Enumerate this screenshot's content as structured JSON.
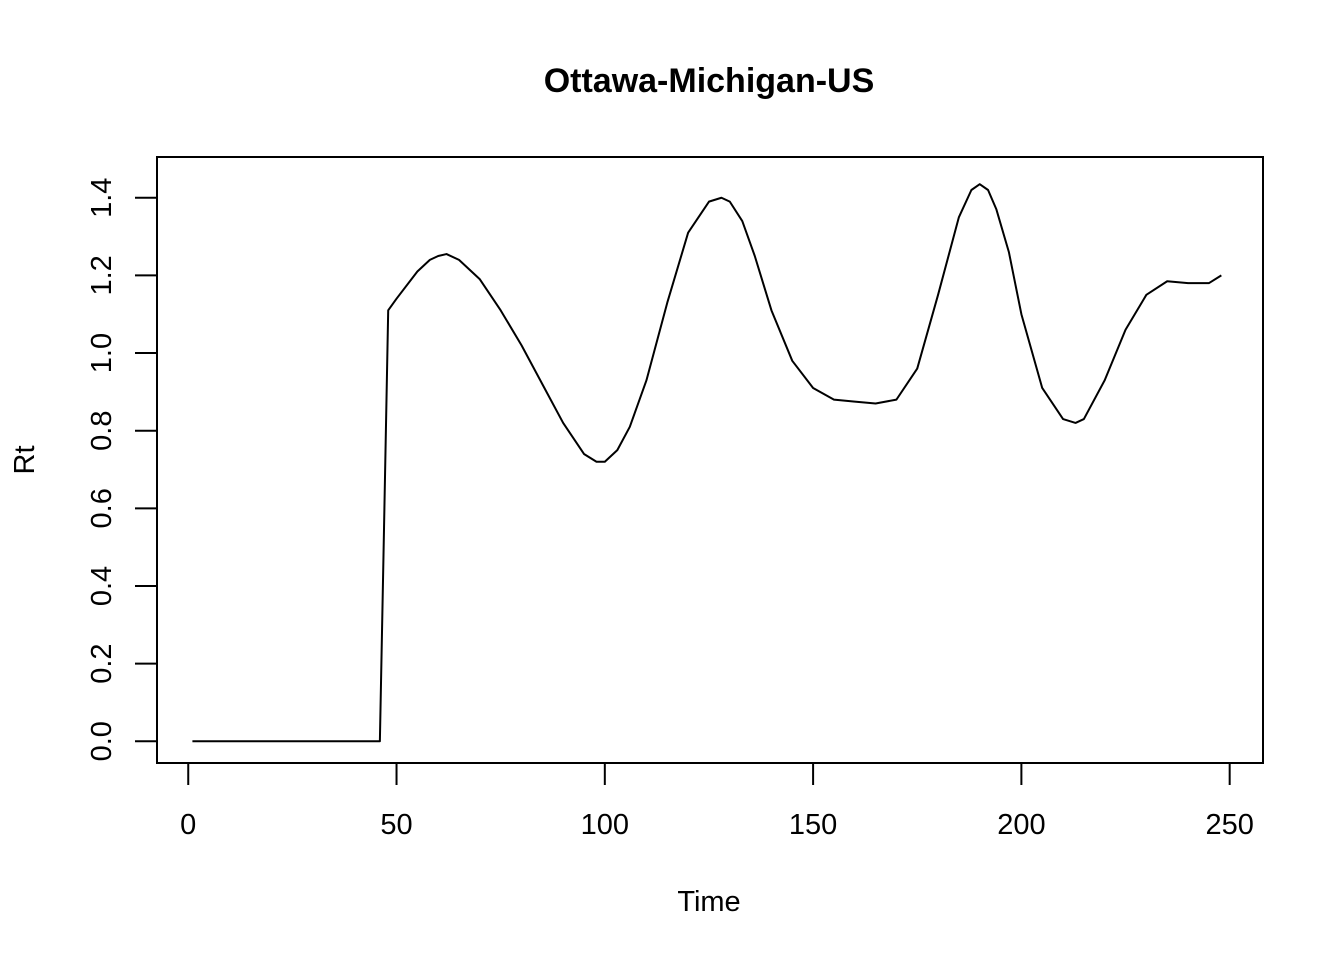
{
  "chart_data": {
    "type": "line",
    "title": "Ottawa-Michigan-US",
    "xlabel": "Time",
    "ylabel": "Rt",
    "xlim": [
      -7.5,
      258
    ],
    "ylim": [
      -0.056,
      1.505
    ],
    "x_ticks": [
      0,
      50,
      100,
      150,
      200,
      250
    ],
    "x_tick_labels": [
      "0",
      "50",
      "100",
      "150",
      "200",
      "250"
    ],
    "y_ticks": [
      0.0,
      0.2,
      0.4,
      0.6,
      0.8,
      1.0,
      1.2,
      1.4
    ],
    "y_tick_labels": [
      "0.0",
      "0.2",
      "0.4",
      "0.6",
      "0.8",
      "1.0",
      "1.2",
      "1.4"
    ],
    "grid": false,
    "line_color": "#000000",
    "series": [
      {
        "x": [
          1,
          10,
          20,
          30,
          40,
          46,
          47,
          48,
          50,
          55,
          58,
          60,
          62,
          65,
          70,
          75,
          80,
          85,
          90,
          95,
          98,
          100,
          103,
          106,
          110,
          115,
          120,
          125,
          128,
          130,
          133,
          136,
          140,
          145,
          150,
          155,
          160,
          165,
          170,
          175,
          180,
          185,
          188,
          190,
          192,
          194,
          197,
          200,
          205,
          210,
          213,
          215,
          220,
          225,
          230,
          235,
          240,
          245,
          248
        ],
        "y": [
          0.0,
          0.0,
          0.0,
          0.0,
          0.0,
          0.0,
          0.55,
          1.11,
          1.14,
          1.21,
          1.24,
          1.25,
          1.255,
          1.24,
          1.19,
          1.11,
          1.02,
          0.92,
          0.82,
          0.74,
          0.72,
          0.72,
          0.75,
          0.81,
          0.93,
          1.13,
          1.31,
          1.39,
          1.4,
          1.39,
          1.34,
          1.25,
          1.11,
          0.98,
          0.91,
          0.88,
          0.875,
          0.87,
          0.88,
          0.96,
          1.15,
          1.35,
          1.42,
          1.435,
          1.42,
          1.37,
          1.26,
          1.1,
          0.91,
          0.83,
          0.82,
          0.83,
          0.93,
          1.06,
          1.15,
          1.185,
          1.18,
          1.18,
          1.2
        ]
      }
    ]
  }
}
